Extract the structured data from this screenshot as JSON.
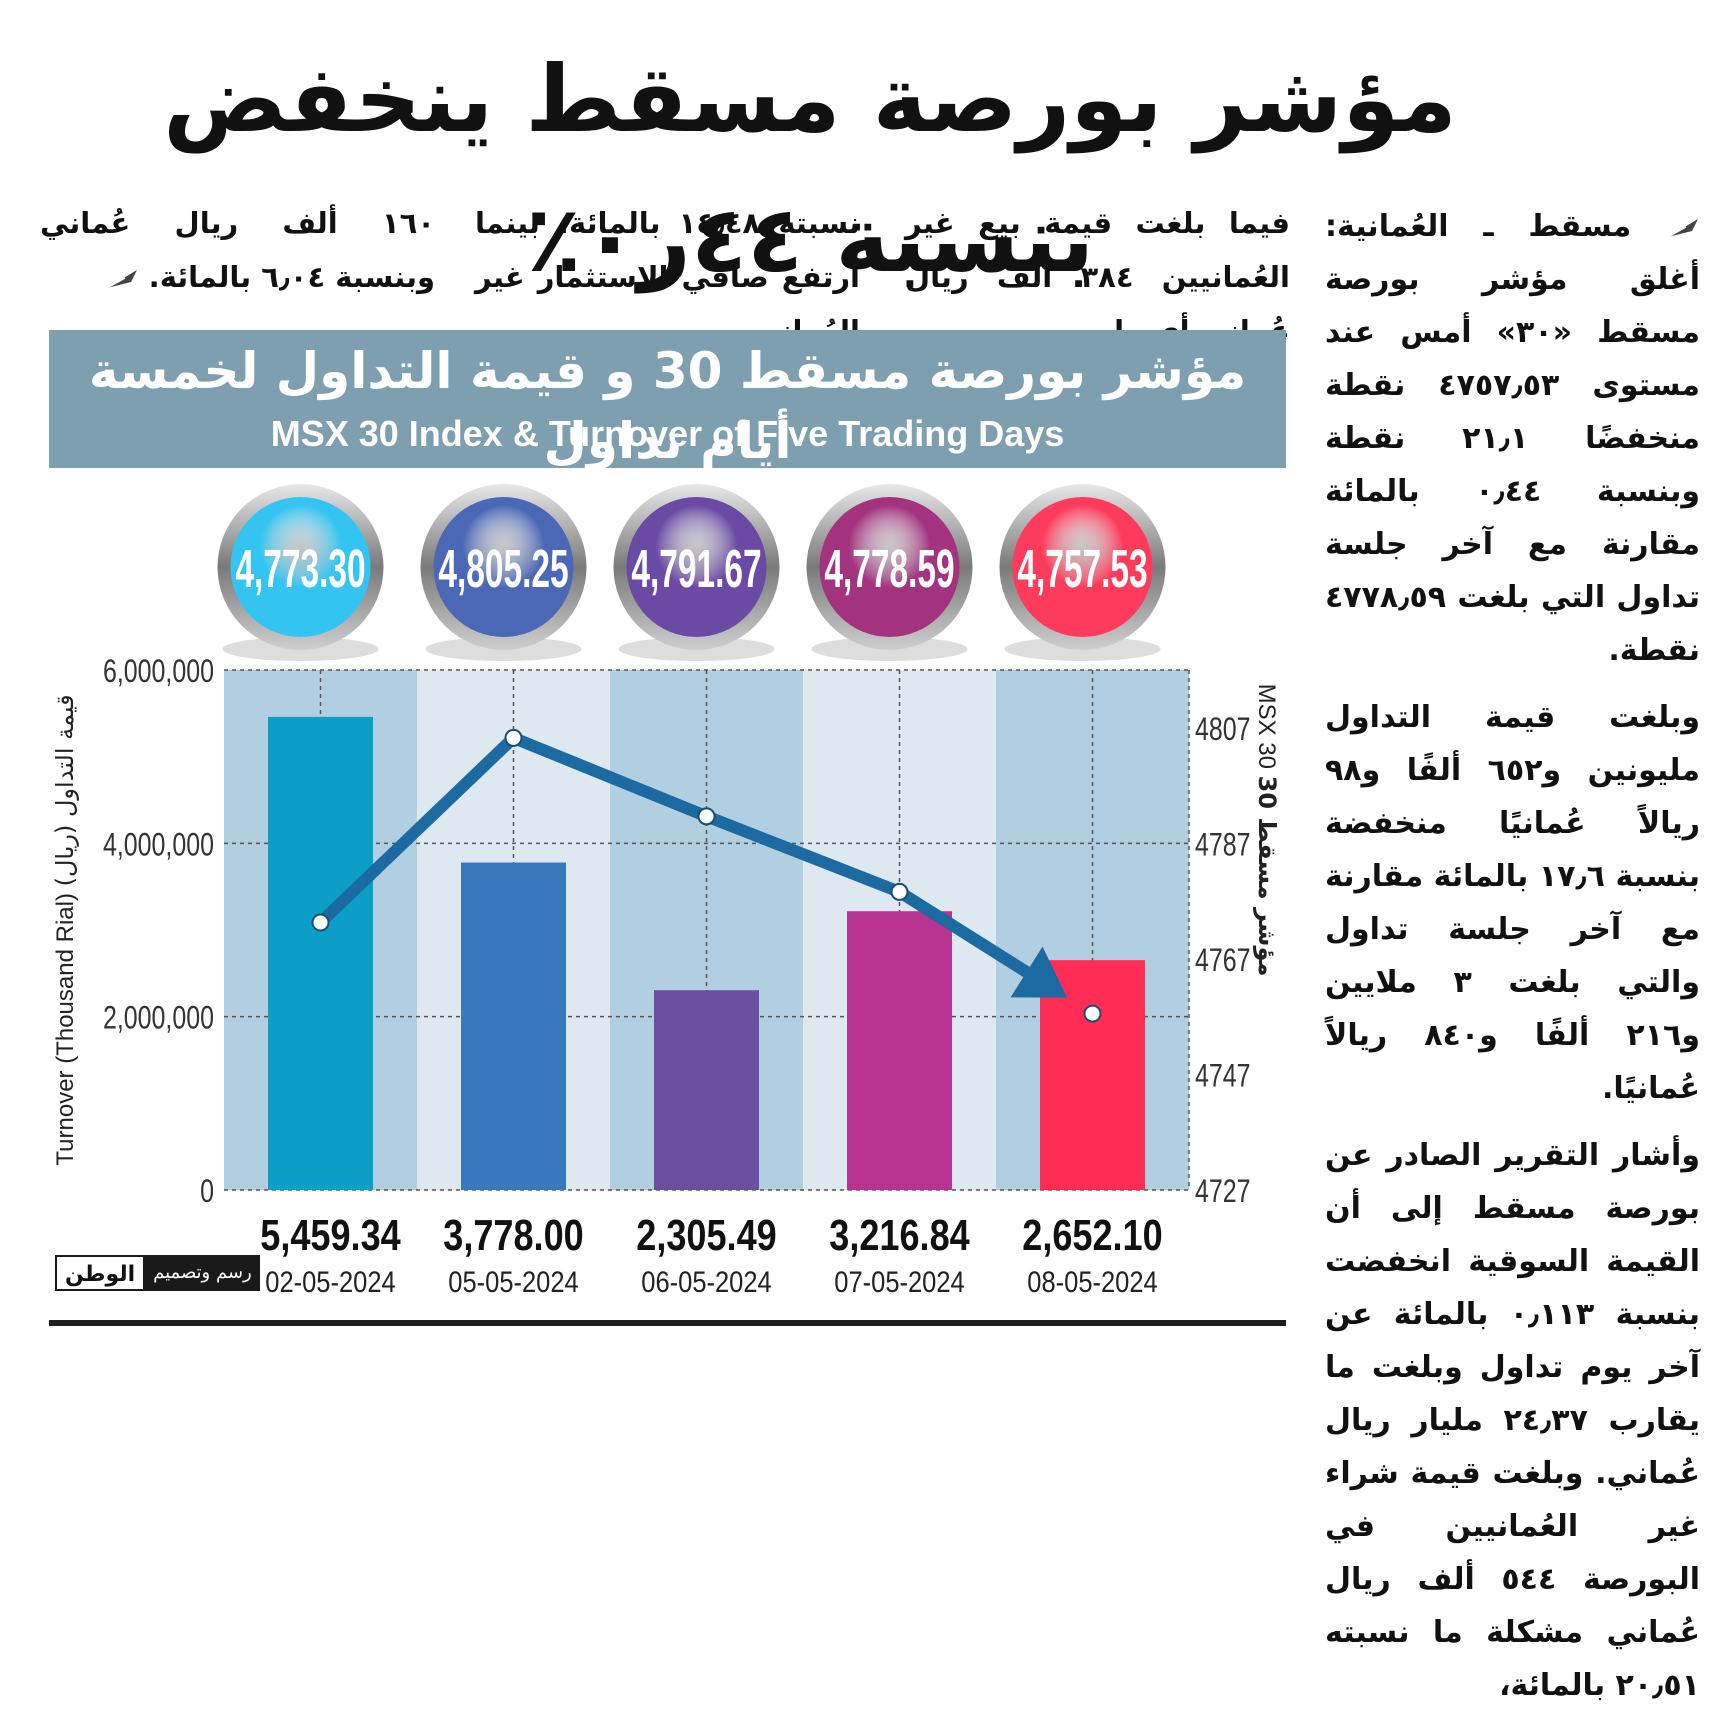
{
  "headline": "مؤشر بورصة مسقط ينخفض بنسبة ٤٤ر٠٪",
  "article": {
    "right_column": [
      "مسقط ـ العُمانية: أغلق مؤشر بورصة مسقط «٣٠» أمس عند مستوى ٤٧٥٧٫٥٣ نقطة منخفضًا ٢١٫١ نقطة وبنسبة ٠٫٤٤ بالمائة مقارنة مع آخر جلسة تداول التي بلغت ٤٧٧٨٫٥٩ نقطة.",
      "وبلغت قيمة التداول مليونين و٦٥٢ ألفًا و٩٨ ريالاً عُمانيًا منخفضة بنسبة ١٧٫٦ بالمائة مقارنة مع آخر جلسة تداول والتي بلغت ٣ ملايين و٢١٦ ألفًا و٨٤٠ ريالاً عُمانيًا.",
      "وأشار التقرير الصادر عن بورصة مسقط إلى أن القيمة السوقية انخفضت بنسبة ٠٫١١٣ بالمائة عن آخر يوم تداول وبلغت ما يقارب ٢٤٫٣٧ مليار ريال عُماني. وبلغت قيمة شراء غير العُمانيين في البورصة ٥٤٤ ألف ريال عُماني مشكلة ما نسبته ٢٠٫٥١ بالمائة،"
    ],
    "top_col_1": "فيما بلغت قيمة بيع غير العُمانيين ٣٨٤ ألف ريال عُماني أي ما",
    "top_col_2": "نسبته ١٤٫٤٨ بالمائة، بينما ارتفع صافي الاستثمار غير العُماني",
    "top_col_3": "١٦٠ ألف ريال عُماني وبنسبة ٦٫٠٤ بالمائة."
  },
  "graphic": {
    "title_ar": "مؤشر بورصة مسقط 30 و قيمة التداول لخمسة أيام تداول",
    "title_en": "MSX 30 Index & Turnover of Five Trading Days",
    "credit_black": "رسم وتصميم",
    "credit_logo": "الوطن"
  },
  "chart_data": {
    "type": "bar",
    "categories": [
      "02-05-2024",
      "05-05-2024",
      "06-05-2024",
      "07-05-2024",
      "08-05-2024"
    ],
    "series": [
      {
        "name": "Turnover",
        "axis": "left",
        "values": [
          5459340,
          3778000,
          2305490,
          3216840,
          2652100
        ],
        "labels": [
          "5,459.34",
          "3,778.00",
          "2,305.49",
          "3,216.84",
          "2,652.10"
        ],
        "colors": [
          "#0b9ec9",
          "#3978bd",
          "#6b4fa0",
          "#b93392",
          "#ff2c55"
        ]
      },
      {
        "name": "MSX 30",
        "axis": "right",
        "type": "line",
        "values": [
          4773.3,
          4805.25,
          4791.67,
          4778.59,
          4757.53
        ],
        "labels": [
          "4,773.30",
          "4,805.25",
          "4,791.67",
          "4,778.59",
          "4,757.53"
        ],
        "color": "#1c6aa2"
      }
    ],
    "circle_colors": [
      "#34c4f2",
      "#4a68b6",
      "#6a4aa4",
      "#a3327f",
      "#ff3b5c"
    ],
    "ylabel_left": "Turnover (Thousand Rial)",
    "ylabel_left_ar": "قيمة التداول (ريال)",
    "ylabel_right": "MSX 30",
    "ylabel_right_ar": "مؤشر مسقط 30",
    "ylim_left": [
      0,
      6000000
    ],
    "ylim_right": [
      4727,
      4817
    ],
    "yticks_left": [
      0,
      2000000,
      4000000,
      6000000
    ],
    "ytick_labels_left": [
      "0",
      "2,000,000",
      "4,000,000",
      "6,000,000"
    ],
    "yticks_right": [
      4727,
      4747,
      4767,
      4787,
      4807
    ],
    "ytick_labels_right": [
      "4727",
      "4747",
      "4767",
      "4787",
      "4807"
    ],
    "grid": true
  }
}
